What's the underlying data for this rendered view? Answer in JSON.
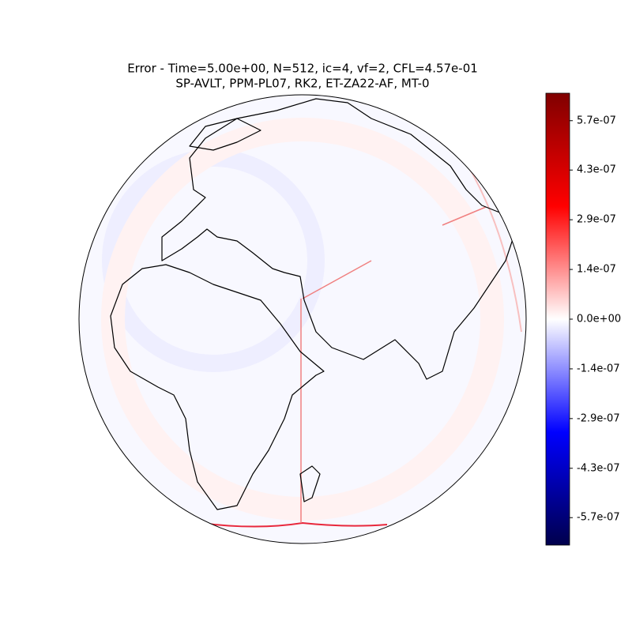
{
  "chart_data": {
    "type": "map",
    "title": "Error - Time=5.00e+00, N=512, ic=4, vf=2, CFL=4.57e-01",
    "subtitle": "SP-AVLT, PPM-PL07, RK2, ET-ZA22-AF, MT-0",
    "colormap": [
      "#00004c",
      "#0000ff",
      "#ffffff",
      "#ff0000",
      "#800000"
    ],
    "clim": [
      -6.5e-07,
      6.5e-07
    ],
    "cticks": [
      {
        "value": -5.71e-07,
        "label": "-5.7e-07"
      },
      {
        "value": -4.29e-07,
        "label": "-4.3e-07"
      },
      {
        "value": -2.86e-07,
        "label": "-2.9e-07"
      },
      {
        "value": -1.43e-07,
        "label": "-1.4e-07"
      },
      {
        "value": 0,
        "label": "0.0e+00"
      },
      {
        "value": 1.43e-07,
        "label": "1.4e-07"
      },
      {
        "value": 2.86e-07,
        "label": "2.9e-07"
      },
      {
        "value": 4.29e-07,
        "label": "4.3e-07"
      },
      {
        "value": 5.71e-07,
        "label": "5.7e-07"
      }
    ]
  }
}
